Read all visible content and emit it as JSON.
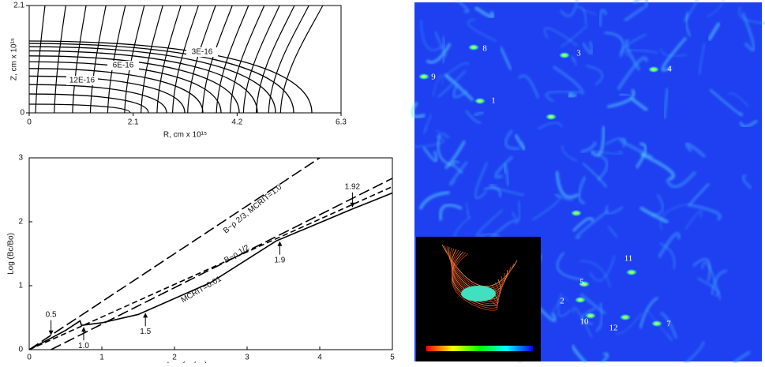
{
  "chart_data": [
    {
      "type": "contour",
      "xlabel": "R, cm x 10¹⁵",
      "ylabel": "Z, cm x 10¹⁵",
      "xlim": [
        0,
        6.3
      ],
      "ylim": [
        0,
        2.1
      ],
      "xticks": [
        0,
        2.1,
        4.2,
        6.3
      ],
      "yticks": [
        0,
        2.1
      ],
      "contour_labels": [
        "3E-16",
        "6E-16",
        "12E-16"
      ]
    },
    {
      "type": "line",
      "xlabel": "Log (ρc/ρo)",
      "ylabel": "Log (Bc/Bo)",
      "xlim": [
        0,
        5
      ],
      "ylim": [
        0,
        3
      ],
      "xticks": [
        0,
        1,
        2,
        3,
        4,
        5
      ],
      "yticks": [
        0,
        1,
        2,
        3
      ],
      "color": "#000000",
      "series": [
        {
          "label": "B~ρ 2/3, MCRIT=1.0",
          "dash": "long",
          "x": [
            0,
            4
          ],
          "values": [
            0,
            3
          ]
        },
        {
          "label": "B~ρ 1/2",
          "dash": "short",
          "x": [
            0,
            5
          ],
          "values": [
            0,
            2.55
          ]
        },
        {
          "dash": "solid",
          "x": [
            0,
            0.5,
            0.7,
            0.72,
            1.0,
            1.5,
            2.5,
            3.4,
            4.45,
            5
          ],
          "values": [
            0,
            0.3,
            0.45,
            0.38,
            0.42,
            0.55,
            1.05,
            1.7,
            2.2,
            2.45
          ]
        },
        {
          "label": "MCRIT=0.01",
          "dash": "long",
          "x": [
            0.3,
            5
          ],
          "values": [
            0,
            2.68
          ]
        }
      ],
      "markers": [
        {
          "label": "0.5",
          "x": 0.3,
          "y": 0.2
        },
        {
          "label": "1.0",
          "x": 0.75,
          "y": 0.38
        },
        {
          "label": "1.5",
          "x": 1.6,
          "y": 0.6
        },
        {
          "label": "1.9",
          "x": 3.45,
          "y": 1.72
        },
        {
          "label": "1.92",
          "x": 4.45,
          "y": 2.2
        }
      ]
    }
  ],
  "image": {
    "labels": [
      "1",
      "2",
      "3",
      "4",
      "5",
      "7",
      "8",
      "9",
      "10",
      "11",
      "12"
    ]
  }
}
